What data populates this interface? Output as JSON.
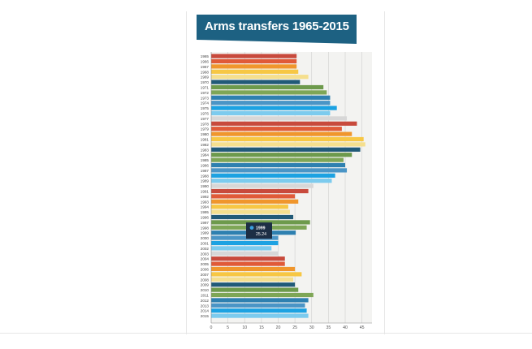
{
  "chart_data": {
    "type": "bar",
    "orientation": "horizontal",
    "title": "Arms transfers 1965-2015",
    "xlim": [
      0,
      48
    ],
    "x_ticks": [
      0,
      5,
      10,
      15,
      20,
      25,
      30,
      35,
      40,
      45
    ],
    "grid": true,
    "categories": [
      "1965",
      "1966",
      "1967",
      "1968",
      "1969",
      "1970",
      "1971",
      "1972",
      "1973",
      "1974",
      "1975",
      "1976",
      "1977",
      "1978",
      "1979",
      "1980",
      "1981",
      "1982",
      "1983",
      "1984",
      "1985",
      "1986",
      "1987",
      "1988",
      "1989",
      "1990",
      "1991",
      "1992",
      "1993",
      "1994",
      "1995",
      "1996",
      "1997",
      "1998",
      "1999",
      "2000",
      "2001",
      "2002",
      "2003",
      "2004",
      "2005",
      "2006",
      "2007",
      "2008",
      "2009",
      "2010",
      "2011",
      "2012",
      "2013",
      "2014",
      "2015"
    ],
    "values": [
      25.5,
      25.5,
      25.5,
      26,
      29,
      26.5,
      33.5,
      34.5,
      35.5,
      35.5,
      37.5,
      35.5,
      40.5,
      43.5,
      39,
      42,
      45.5,
      46,
      44.5,
      42,
      39.5,
      40,
      40.5,
      37,
      36,
      30.5,
      29,
      25,
      26,
      23,
      23.5,
      24.5,
      29.5,
      28.5,
      25.24,
      20,
      20,
      18,
      20,
      22,
      22,
      25,
      27,
      24.5,
      25,
      26,
      30.5,
      29,
      28,
      28.5,
      29
    ],
    "colors": [
      "#c84a3c",
      "#e05a38",
      "#f0962c",
      "#f7c744",
      "#f5df8e",
      "#215a78",
      "#6d9a4c",
      "#7ea656",
      "#2e80b0",
      "#4a95c6",
      "#1ca2e2",
      "#7ccbee",
      "#d7d7d7"
    ],
    "tooltip": {
      "year": "1999",
      "value": "25.24"
    }
  }
}
